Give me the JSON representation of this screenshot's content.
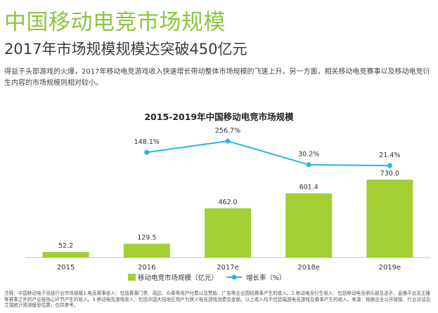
{
  "page": {
    "title": "中国移动电竞市场规模",
    "subtitle": "2017年市场规模规模达突破450亿元",
    "description": "得益于头部游戏的火爆，2017年移动电竞游戏收入快速增长带动整体市场规模的飞速上升。另一方面，相关移动电竞赛事以及移动电竞衍生内容的市场规模则相对较小。",
    "note": "注释：中国移动电子竞技行业市场规模1.电竞赛事收入：包括赛事门票、周边、众筹等用户付费以及赞助、广告等企业围绕赛事产生的收入。2.移动电竞衍生收入：包括移动电竞俱乐部及选手、直播平台及主播等赛事之外的产业链核心环节产生的收入。3.移动电竞游戏收入：包括中国大陆地区用户为狭义电竞游戏消费总金额。以上收入均不包括端游电竞游戏及赛事产生的收入。来源：根据企业公开财报、行业访谈及艾瑞统计预测模型估算，仅供参考。"
  },
  "colors": {
    "accent": "#8cc63f",
    "bar": "#a3cf35",
    "line": "#29b6e6",
    "axis": "#bfbfbf"
  },
  "chart_data": {
    "type": "bar",
    "title": "2015-2019年中国移动电竞市场规模",
    "categories": [
      "2015",
      "2016",
      "2017e",
      "2018e",
      "2019e"
    ],
    "series": [
      {
        "name": "移动电竞市场规模（亿元）",
        "type": "bar",
        "values": [
          52.2,
          129.5,
          462.0,
          601.4,
          730.0
        ],
        "labels": [
          "52.2",
          "129.5",
          "462.0",
          "601.4",
          "730.0"
        ]
      },
      {
        "name": "增长率（%）",
        "type": "line",
        "values": [
          null,
          148.1,
          256.7,
          30.2,
          21.4
        ],
        "labels": [
          "",
          "148.1%",
          "256.7%",
          "30.2%",
          "21.4%"
        ]
      }
    ],
    "legend_position": "bottom",
    "grid": false
  }
}
